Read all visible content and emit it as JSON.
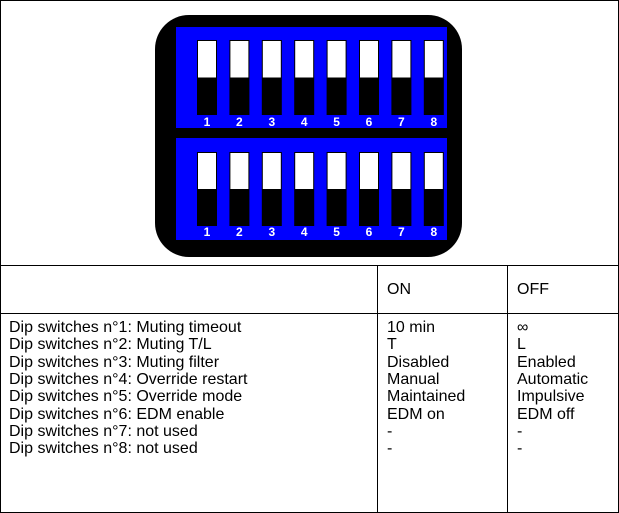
{
  "switches": {
    "top": {
      "labels": [
        "1",
        "2",
        "3",
        "4",
        "5",
        "6",
        "7",
        "8"
      ]
    },
    "bottom": {
      "labels": [
        "1",
        "2",
        "3",
        "4",
        "5",
        "6",
        "7",
        "8"
      ]
    }
  },
  "table": {
    "columns": [
      "ON",
      "OFF"
    ],
    "rows": [
      [
        "Dip switches n°1: Muting timeout",
        "10 min",
        "∞"
      ],
      [
        "Dip switches n°2: Muting T/L",
        "T",
        "L"
      ],
      [
        "Dip switches n°3: Muting filter",
        "Disabled",
        "Enabled"
      ],
      [
        "Dip switches n°4: Override restart",
        "Manual",
        "Automatic"
      ],
      [
        "Dip switches n°5: Override mode",
        "Maintained",
        "Impulsive"
      ],
      [
        "Dip switches n°6: EDM enable",
        "EDM on",
        "EDM off"
      ],
      [
        "Dip switches n°7: not used",
        "-",
        "-"
      ],
      [
        "Dip switches n°8: not used",
        "-",
        "-"
      ]
    ]
  }
}
